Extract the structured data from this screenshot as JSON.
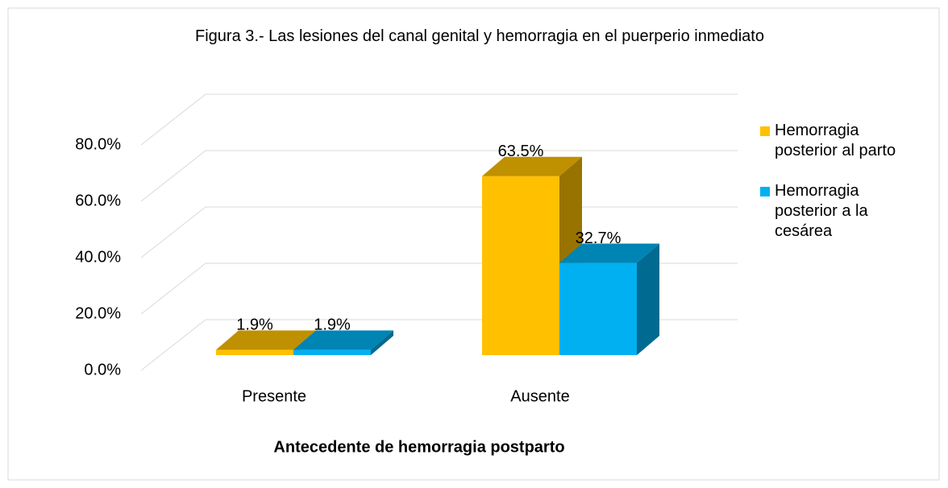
{
  "chart_data": {
    "type": "bar3d",
    "title": "Figura 3.- Las lesiones del canal genital y hemorragia en el puerperio inmediato",
    "x_label": "Antecedente de hemorragia postparto",
    "categories": [
      "Presente",
      "Ausente"
    ],
    "series": [
      {
        "name": "Hemorragia posterior al parto",
        "color": "#FFC000",
        "values": [
          1.9,
          63.5
        ],
        "value_labels": [
          "1.9%",
          "63.5%"
        ]
      },
      {
        "name": "Hemorragia posterior a la cesárea",
        "color": "#00B0F0",
        "values": [
          1.9,
          32.7
        ],
        "value_labels": [
          "1.9%",
          "32.7%"
        ]
      }
    ],
    "ylim": [
      0,
      80
    ],
    "yticks": [
      {
        "value": 0,
        "label": "0.0%"
      },
      {
        "value": 20,
        "label": "20.0%"
      },
      {
        "value": 40,
        "label": "40.0%"
      },
      {
        "value": 60,
        "label": "60.0%"
      },
      {
        "value": 80,
        "label": "80.0%"
      }
    ],
    "grid": true,
    "legend": "right"
  }
}
